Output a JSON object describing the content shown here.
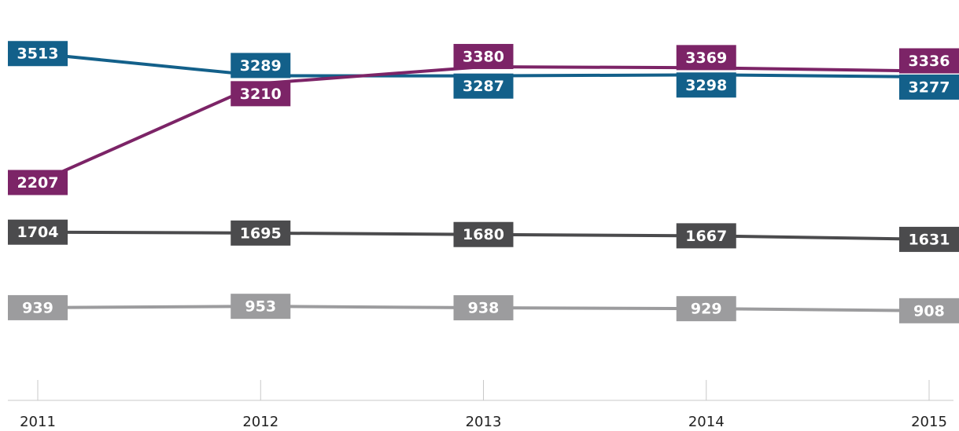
{
  "chart_data": {
    "type": "line",
    "categories": [
      "2011",
      "2012",
      "2013",
      "2014",
      "2015"
    ],
    "series": [
      {
        "color": "#13608a",
        "values": [
          3513,
          3289,
          3287,
          3298,
          3277
        ]
      },
      {
        "color": "#7c2467",
        "values": [
          2207,
          3210,
          3380,
          3369,
          3336
        ]
      },
      {
        "color": "#4b4b4d",
        "values": [
          1704,
          1695,
          1680,
          1667,
          1631
        ]
      },
      {
        "color": "#9c9c9e",
        "values": [
          939,
          953,
          938,
          929,
          908
        ]
      }
    ],
    "ylim": [
      0,
      4000
    ]
  }
}
